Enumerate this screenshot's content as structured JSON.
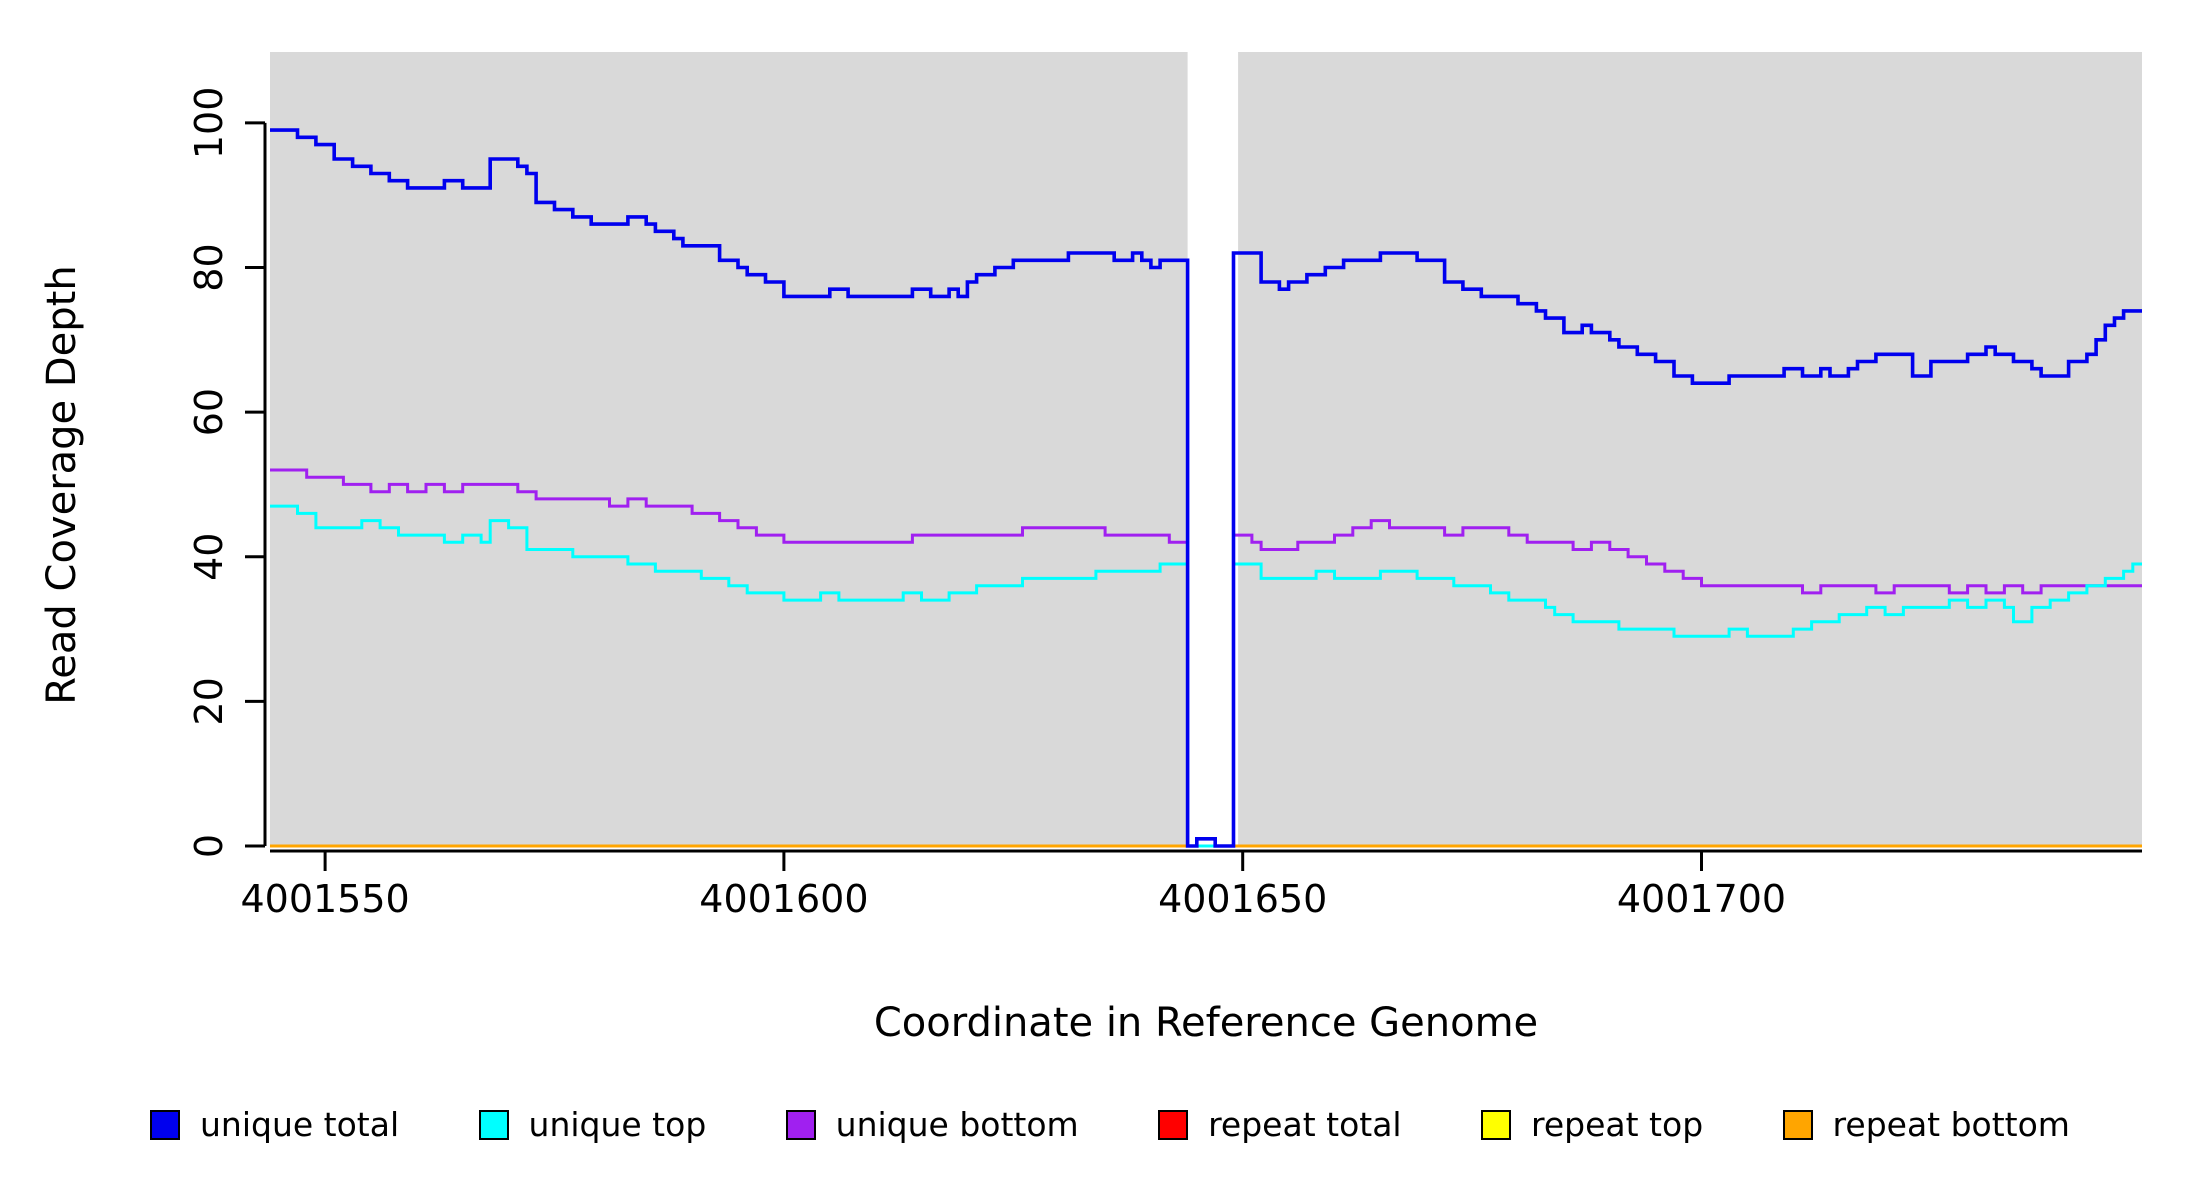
{
  "chart_data": {
    "type": "line",
    "title": "",
    "xlabel": "Coordinate in Reference Genome",
    "ylabel": "Read Coverage Depth",
    "step": "after",
    "xlim": [
      4001544,
      4001748
    ],
    "ylim": [
      0,
      109.8
    ],
    "x_ticks": [
      4001550,
      4001600,
      4001650,
      4001700
    ],
    "x_tick_labels": [
      "4001550",
      "4001600",
      "4001650",
      "4001700"
    ],
    "y_ticks": [
      0,
      20,
      40,
      60,
      80,
      100
    ],
    "y_tick_labels": [
      "0",
      "20",
      "40",
      "60",
      "80",
      "100"
    ],
    "grid": false,
    "plot_bg": "#d9d9d9",
    "gap_band": {
      "x0": 4001644,
      "x1": 4001649.5,
      "color": "#ffffff"
    },
    "series": [
      {
        "name": "repeat total",
        "color": "#ff0000",
        "width": 3,
        "points": [
          [
            4001544,
            0
          ]
        ]
      },
      {
        "name": "repeat top",
        "color": "#ffff00",
        "width": 3,
        "points": [
          [
            4001544,
            0
          ]
        ]
      },
      {
        "name": "repeat bottom",
        "color": "#ffa500",
        "width": 3,
        "points": [
          [
            4001544,
            0
          ]
        ]
      },
      {
        "name": "unique bottom",
        "color": "#a020f0",
        "width": 3,
        "points": [
          [
            4001544,
            52
          ],
          [
            4001548,
            51
          ],
          [
            4001552,
            50
          ],
          [
            4001555,
            49
          ],
          [
            4001557,
            50
          ],
          [
            4001559,
            49
          ],
          [
            4001561,
            50
          ],
          [
            4001563,
            49
          ],
          [
            4001565,
            50
          ],
          [
            4001569,
            50
          ],
          [
            4001571,
            49
          ],
          [
            4001573,
            48
          ],
          [
            4001578,
            48
          ],
          [
            4001581,
            47
          ],
          [
            4001583,
            48
          ],
          [
            4001585,
            47
          ],
          [
            4001588,
            47
          ],
          [
            4001590,
            46
          ],
          [
            4001593,
            45
          ],
          [
            4001595,
            44
          ],
          [
            4001597,
            43
          ],
          [
            4001600,
            42
          ],
          [
            4001605,
            42
          ],
          [
            4001610,
            42
          ],
          [
            4001614,
            43
          ],
          [
            4001618,
            43
          ],
          [
            4001622,
            43
          ],
          [
            4001626,
            44
          ],
          [
            4001631,
            44
          ],
          [
            4001635,
            43
          ],
          [
            4001639,
            43
          ],
          [
            4001642,
            42
          ],
          [
            4001644,
            0
          ],
          [
            4001645,
            1
          ],
          [
            4001647,
            0
          ],
          [
            4001649,
            43
          ],
          [
            4001651,
            42
          ],
          [
            4001652,
            41
          ],
          [
            4001655,
            41
          ],
          [
            4001656,
            42
          ],
          [
            4001658,
            42
          ],
          [
            4001660,
            43
          ],
          [
            4001662,
            44
          ],
          [
            4001664,
            45
          ],
          [
            4001666,
            44
          ],
          [
            4001670,
            44
          ],
          [
            4001672,
            43
          ],
          [
            4001674,
            44
          ],
          [
            4001677,
            44
          ],
          [
            4001679,
            43
          ],
          [
            4001681,
            42
          ],
          [
            4001685,
            42
          ],
          [
            4001686,
            41
          ],
          [
            4001688,
            42
          ],
          [
            4001690,
            41
          ],
          [
            4001692,
            40
          ],
          [
            4001694,
            39
          ],
          [
            4001696,
            38
          ],
          [
            4001698,
            37
          ],
          [
            4001700,
            36
          ],
          [
            4001705,
            36
          ],
          [
            4001709,
            36
          ],
          [
            4001711,
            35
          ],
          [
            4001713,
            36
          ],
          [
            4001717,
            36
          ],
          [
            4001719,
            35
          ],
          [
            4001721,
            36
          ],
          [
            4001725,
            36
          ],
          [
            4001727,
            35
          ],
          [
            4001729,
            36
          ],
          [
            4001731,
            35
          ],
          [
            4001733,
            36
          ],
          [
            4001735,
            35
          ],
          [
            4001737,
            36
          ],
          [
            4001741,
            36
          ],
          [
            4001745,
            36
          ],
          [
            4001747,
            36
          ]
        ]
      },
      {
        "name": "unique top",
        "color": "#00ffff",
        "width": 3,
        "points": [
          [
            4001544,
            47
          ],
          [
            4001547,
            46
          ],
          [
            4001549,
            44
          ],
          [
            4001552,
            44
          ],
          [
            4001554,
            45
          ],
          [
            4001556,
            44
          ],
          [
            4001558,
            43
          ],
          [
            4001561,
            43
          ],
          [
            4001563,
            42
          ],
          [
            4001565,
            43
          ],
          [
            4001567,
            42
          ],
          [
            4001568,
            45
          ],
          [
            4001570,
            44
          ],
          [
            4001572,
            41
          ],
          [
            4001575,
            41
          ],
          [
            4001577,
            40
          ],
          [
            4001581,
            40
          ],
          [
            4001583,
            39
          ],
          [
            4001586,
            38
          ],
          [
            4001589,
            38
          ],
          [
            4001591,
            37
          ],
          [
            4001594,
            36
          ],
          [
            4001596,
            35
          ],
          [
            4001599,
            35
          ],
          [
            4001600,
            34
          ],
          [
            4001604,
            35
          ],
          [
            4001606,
            34
          ],
          [
            4001610,
            34
          ],
          [
            4001613,
            35
          ],
          [
            4001615,
            34
          ],
          [
            4001618,
            35
          ],
          [
            4001621,
            36
          ],
          [
            4001624,
            36
          ],
          [
            4001626,
            37
          ],
          [
            4001631,
            37
          ],
          [
            4001634,
            38
          ],
          [
            4001639,
            38
          ],
          [
            4001641,
            39
          ],
          [
            4001644,
            0
          ],
          [
            4001649,
            39
          ],
          [
            4001651,
            39
          ],
          [
            4001652,
            37
          ],
          [
            4001656,
            37
          ],
          [
            4001658,
            38
          ],
          [
            4001660,
            37
          ],
          [
            4001663,
            37
          ],
          [
            4001665,
            38
          ],
          [
            4001667,
            38
          ],
          [
            4001669,
            37
          ],
          [
            4001671,
            37
          ],
          [
            4001673,
            36
          ],
          [
            4001675,
            36
          ],
          [
            4001677,
            35
          ],
          [
            4001679,
            34
          ],
          [
            4001681,
            34
          ],
          [
            4001683,
            33
          ],
          [
            4001684,
            32
          ],
          [
            4001686,
            31
          ],
          [
            4001689,
            31
          ],
          [
            4001691,
            30
          ],
          [
            4001695,
            30
          ],
          [
            4001697,
            29
          ],
          [
            4001701,
            29
          ],
          [
            4001703,
            30
          ],
          [
            4001705,
            29
          ],
          [
            4001708,
            29
          ],
          [
            4001710,
            30
          ],
          [
            4001712,
            31
          ],
          [
            4001714,
            31
          ],
          [
            4001715,
            32
          ],
          [
            4001718,
            33
          ],
          [
            4001720,
            32
          ],
          [
            4001722,
            33
          ],
          [
            4001725,
            33
          ],
          [
            4001727,
            34
          ],
          [
            4001729,
            33
          ],
          [
            4001731,
            34
          ],
          [
            4001733,
            33
          ],
          [
            4001734,
            31
          ],
          [
            4001736,
            33
          ],
          [
            4001738,
            34
          ],
          [
            4001740,
            35
          ],
          [
            4001742,
            36
          ],
          [
            4001744,
            37
          ],
          [
            4001746,
            38
          ],
          [
            4001747,
            39
          ]
        ]
      },
      {
        "name": "unique total",
        "color": "#0000ee",
        "width": 3.6,
        "points": [
          [
            4001544,
            99
          ],
          [
            4001547,
            98
          ],
          [
            4001549,
            97
          ],
          [
            4001551,
            95
          ],
          [
            4001553,
            94
          ],
          [
            4001555,
            93
          ],
          [
            4001557,
            92
          ],
          [
            4001559,
            91
          ],
          [
            4001563,
            92
          ],
          [
            4001565,
            91
          ],
          [
            4001568,
            95
          ],
          [
            4001571,
            94
          ],
          [
            4001572,
            93
          ],
          [
            4001573,
            89
          ],
          [
            4001575,
            88
          ],
          [
            4001577,
            87
          ],
          [
            4001579,
            86
          ],
          [
            4001583,
            87
          ],
          [
            4001585,
            86
          ],
          [
            4001586,
            85
          ],
          [
            4001588,
            84
          ],
          [
            4001589,
            83
          ],
          [
            4001593,
            81
          ],
          [
            4001595,
            80
          ],
          [
            4001596,
            79
          ],
          [
            4001598,
            78
          ],
          [
            4001600,
            76
          ],
          [
            4001605,
            77
          ],
          [
            4001607,
            76
          ],
          [
            4001614,
            77
          ],
          [
            4001616,
            76
          ],
          [
            4001618,
            77
          ],
          [
            4001619,
            76
          ],
          [
            4001620,
            78
          ],
          [
            4001621,
            79
          ],
          [
            4001623,
            80
          ],
          [
            4001625,
            81
          ],
          [
            4001631,
            82
          ],
          [
            4001636,
            81
          ],
          [
            4001638,
            82
          ],
          [
            4001639,
            81
          ],
          [
            4001640,
            80
          ],
          [
            4001641,
            81
          ],
          [
            4001644,
            0
          ],
          [
            4001645,
            1
          ],
          [
            4001647,
            0
          ],
          [
            4001649,
            82
          ],
          [
            4001652,
            78
          ],
          [
            4001654,
            77
          ],
          [
            4001655,
            78
          ],
          [
            4001657,
            79
          ],
          [
            4001659,
            80
          ],
          [
            4001661,
            81
          ],
          [
            4001665,
            82
          ],
          [
            4001669,
            81
          ],
          [
            4001672,
            78
          ],
          [
            4001674,
            77
          ],
          [
            4001676,
            76
          ],
          [
            4001680,
            75
          ],
          [
            4001682,
            74
          ],
          [
            4001683,
            73
          ],
          [
            4001685,
            71
          ],
          [
            4001687,
            72
          ],
          [
            4001688,
            71
          ],
          [
            4001690,
            70
          ],
          [
            4001691,
            69
          ],
          [
            4001693,
            68
          ],
          [
            4001695,
            67
          ],
          [
            4001697,
            65
          ],
          [
            4001699,
            64
          ],
          [
            4001703,
            65
          ],
          [
            4001709,
            66
          ],
          [
            4001711,
            65
          ],
          [
            4001713,
            66
          ],
          [
            4001714,
            65
          ],
          [
            4001716,
            66
          ],
          [
            4001717,
            67
          ],
          [
            4001719,
            68
          ],
          [
            4001723,
            65
          ],
          [
            4001725,
            67
          ],
          [
            4001729,
            68
          ],
          [
            4001731,
            69
          ],
          [
            4001732,
            68
          ],
          [
            4001734,
            67
          ],
          [
            4001736,
            66
          ],
          [
            4001737,
            65
          ],
          [
            4001740,
            67
          ],
          [
            4001742,
            68
          ],
          [
            4001743,
            70
          ],
          [
            4001744,
            72
          ],
          [
            4001745,
            73
          ],
          [
            4001746,
            74
          ],
          [
            4001747,
            74
          ]
        ]
      }
    ],
    "legend": [
      {
        "label": "unique total",
        "color": "#0000ee"
      },
      {
        "label": "unique top",
        "color": "#00ffff"
      },
      {
        "label": "unique bottom",
        "color": "#a020f0"
      },
      {
        "label": "repeat total",
        "color": "#ff0000"
      },
      {
        "label": "repeat top",
        "color": "#ffff00"
      },
      {
        "label": "repeat bottom",
        "color": "#ffa500"
      }
    ]
  }
}
